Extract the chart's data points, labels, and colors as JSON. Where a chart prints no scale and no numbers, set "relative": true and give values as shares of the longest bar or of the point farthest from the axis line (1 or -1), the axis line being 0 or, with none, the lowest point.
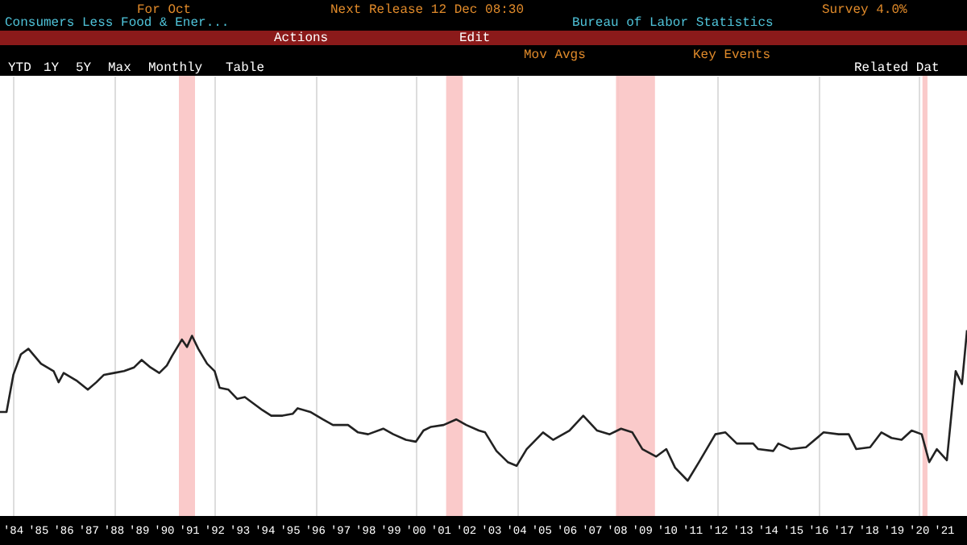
{
  "chart_data": {
    "type": "line",
    "title": "Consumers Less Food & Ener...",
    "relative": true,
    "grid": "x",
    "annotations": [
      "For Oct",
      "Next Release 12 Dec 08:30",
      "Survey 4.0%",
      "Bureau of Labor Statistics",
      "Actions",
      "Edit",
      "Mov Avgs",
      "Key Events",
      "YTD",
      "1Y",
      "5Y",
      "Max",
      "Monthly",
      "Table",
      "Related Dat"
    ],
    "xlim": [
      1983.47,
      2021.9
    ],
    "xticks": [
      {
        "value": 1984,
        "label": "'84"
      },
      {
        "value": 1985,
        "label": "'85"
      },
      {
        "value": 1986,
        "label": "'86"
      },
      {
        "value": 1987,
        "label": "'87"
      },
      {
        "value": 1988,
        "label": "'88"
      },
      {
        "value": 1989,
        "label": "'89"
      },
      {
        "value": 1990,
        "label": "'90"
      },
      {
        "value": 1991,
        "label": "'91"
      },
      {
        "value": 1992,
        "label": "'92"
      },
      {
        "value": 1993,
        "label": "'93"
      },
      {
        "value": 1994,
        "label": "'94"
      },
      {
        "value": 1995,
        "label": "'95"
      },
      {
        "value": 1996,
        "label": "'96"
      },
      {
        "value": 1997,
        "label": "'97"
      },
      {
        "value": 1998,
        "label": "'98"
      },
      {
        "value": 1999,
        "label": "'99"
      },
      {
        "value": 2000,
        "label": "'00"
      },
      {
        "value": 2001,
        "label": "'01"
      },
      {
        "value": 2002,
        "label": "'02"
      },
      {
        "value": 2003,
        "label": "'03"
      },
      {
        "value": 2004,
        "label": "'04"
      },
      {
        "value": 2005,
        "label": "'05"
      },
      {
        "value": 2006,
        "label": "'06"
      },
      {
        "value": 2007,
        "label": "'07"
      },
      {
        "value": 2008,
        "label": "'08"
      },
      {
        "value": 2009,
        "label": "'09"
      },
      {
        "value": 2010,
        "label": "'10"
      },
      {
        "value": 2011,
        "label": "'11"
      },
      {
        "value": 2012,
        "label": "'12"
      },
      {
        "value": 2013,
        "label": "'13"
      },
      {
        "value": 2014,
        "label": "'14"
      },
      {
        "value": 2015,
        "label": "'15"
      },
      {
        "value": 2016,
        "label": "'16"
      },
      {
        "value": 2017,
        "label": "'17"
      },
      {
        "value": 2018,
        "label": "'18"
      },
      {
        "value": 2019,
        "label": "'19"
      },
      {
        "value": 2020,
        "label": "'20"
      },
      {
        "value": 2021,
        "label": "'21"
      }
    ],
    "bands": [
      {
        "axis": "x",
        "from": 1990.58,
        "to": 1991.22,
        "label": null,
        "color": "#f9c4c4"
      },
      {
        "axis": "x",
        "from": 2001.2,
        "to": 2001.86,
        "label": null,
        "color": "#f9c4c4"
      },
      {
        "axis": "x",
        "from": 2007.95,
        "to": 2009.5,
        "label": null,
        "color": "#f9c4c4"
      },
      {
        "axis": "x",
        "from": 2020.13,
        "to": 2020.33,
        "label": null,
        "color": "#f9c4c4"
      }
    ],
    "x": [
      1983.47,
      1983.73,
      1984.0,
      1984.3,
      1984.6,
      1985.1,
      1985.6,
      1985.8,
      1986.0,
      1986.5,
      1986.96,
      1987.3,
      1987.6,
      1988.0,
      1988.4,
      1988.8,
      1989.1,
      1989.45,
      1989.8,
      1990.1,
      1990.3,
      1990.7,
      1990.9,
      1991.1,
      1991.35,
      1991.7,
      1992.0,
      1992.2,
      1992.55,
      1992.9,
      1993.2,
      1993.5,
      1993.9,
      1994.25,
      1994.7,
      1995.1,
      1995.3,
      1995.8,
      1996.3,
      1996.7,
      1997.3,
      1997.7,
      1998.1,
      1998.7,
      1999.1,
      1999.6,
      2000.0,
      2000.3,
      2000.6,
      2001.1,
      2001.6,
      2002.0,
      2002.5,
      2002.75,
      2003.2,
      2003.65,
      2004.0,
      2004.4,
      2005.05,
      2005.45,
      2006.1,
      2006.65,
      2007.2,
      2007.7,
      2008.15,
      2008.6,
      2009.0,
      2009.55,
      2009.95,
      2010.3,
      2010.8,
      2011.25,
      2011.9,
      2012.3,
      2012.75,
      2013.4,
      2013.6,
      2014.2,
      2014.4,
      2014.9,
      2015.5,
      2016.2,
      2016.8,
      2017.2,
      2017.5,
      2018.05,
      2018.5,
      2018.9,
      2019.3,
      2019.7,
      2020.1,
      2020.4,
      2020.7,
      2021.1,
      2021.45,
      2021.7,
      2021.9
    ],
    "series": [
      {
        "color": "#222222",
        "values": [
          0.56,
          0.56,
          0.76,
          0.87,
          0.9,
          0.82,
          0.78,
          0.72,
          0.77,
          0.73,
          0.68,
          0.72,
          0.76,
          0.77,
          0.78,
          0.8,
          0.84,
          0.8,
          0.77,
          0.81,
          0.86,
          0.95,
          0.91,
          0.97,
          0.9,
          0.82,
          0.78,
          0.69,
          0.68,
          0.63,
          0.64,
          0.61,
          0.57,
          0.54,
          0.54,
          0.55,
          0.58,
          0.56,
          0.52,
          0.49,
          0.49,
          0.45,
          0.44,
          0.47,
          0.44,
          0.41,
          0.4,
          0.46,
          0.48,
          0.49,
          0.52,
          0.49,
          0.46,
          0.45,
          0.35,
          0.29,
          0.27,
          0.36,
          0.45,
          0.41,
          0.46,
          0.54,
          0.46,
          0.44,
          0.47,
          0.45,
          0.36,
          0.32,
          0.36,
          0.26,
          0.19,
          0.29,
          0.44,
          0.45,
          0.39,
          0.39,
          0.36,
          0.35,
          0.39,
          0.36,
          0.37,
          0.45,
          0.44,
          0.44,
          0.36,
          0.37,
          0.45,
          0.42,
          0.41,
          0.46,
          0.44,
          0.29,
          0.36,
          0.3,
          0.78,
          0.71,
          1.0
        ]
      }
    ]
  }
}
